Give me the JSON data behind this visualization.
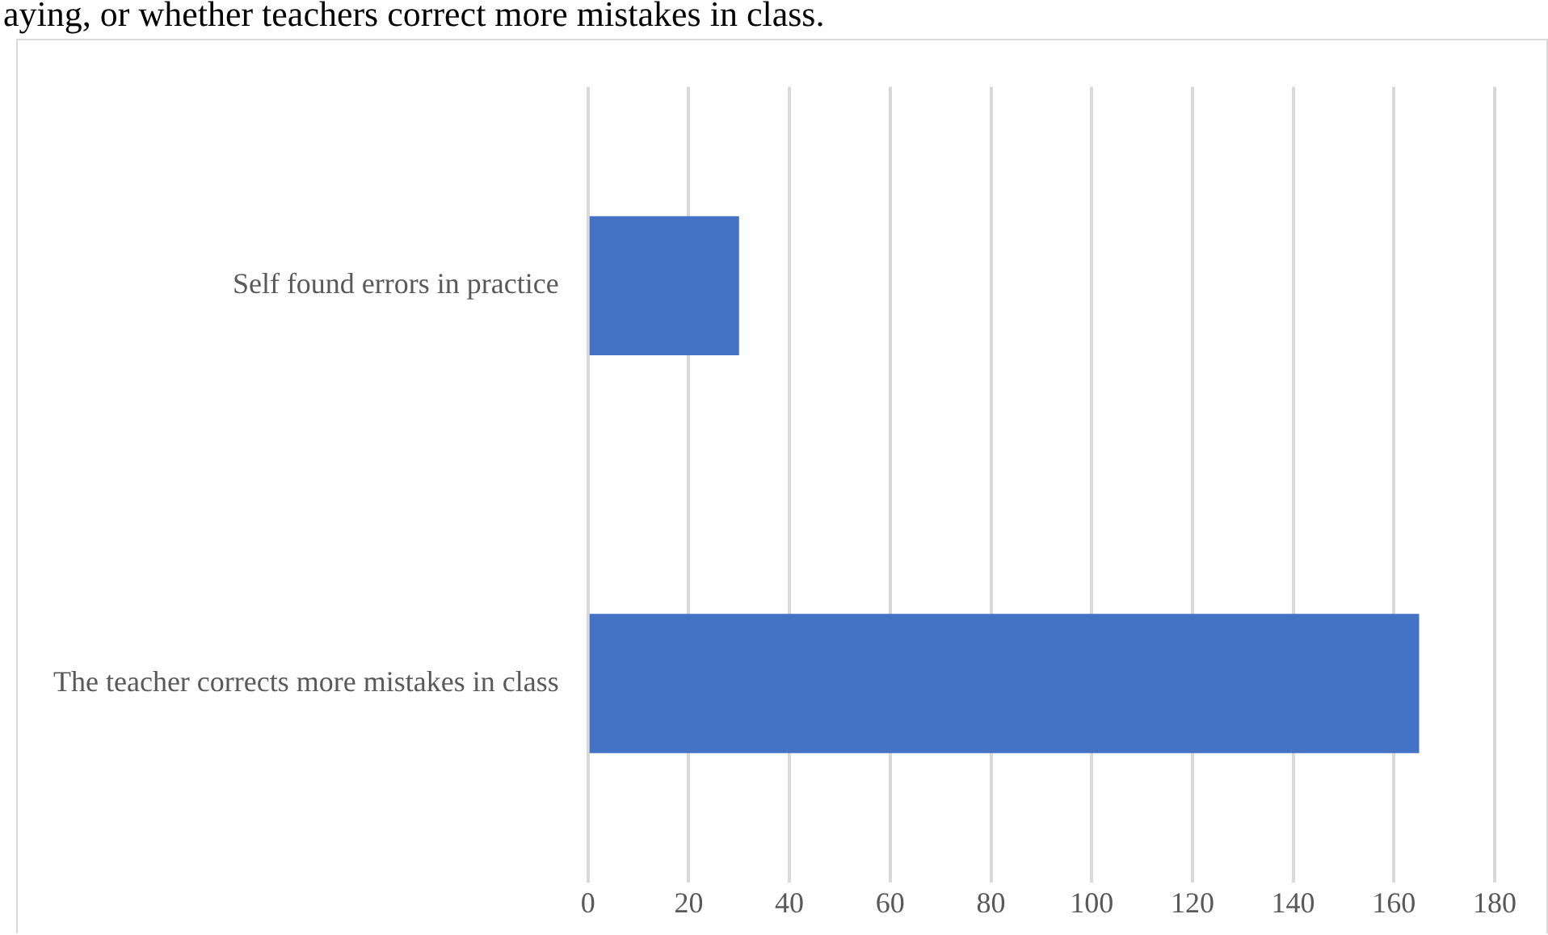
{
  "chart_data": {
    "type": "bar",
    "orientation": "horizontal",
    "annotations": [
      "aying, or whether teachers correct more mistakes in class."
    ],
    "categories": [
      "Self found errors in practice",
      "The teacher corrects more mistakes in class"
    ],
    "values": [
      30,
      165
    ],
    "color": "#4472c4",
    "xlim": [
      0,
      180
    ],
    "xticks": [
      0,
      20,
      40,
      60,
      80,
      100,
      120,
      140,
      160,
      180
    ],
    "grid": "x"
  }
}
